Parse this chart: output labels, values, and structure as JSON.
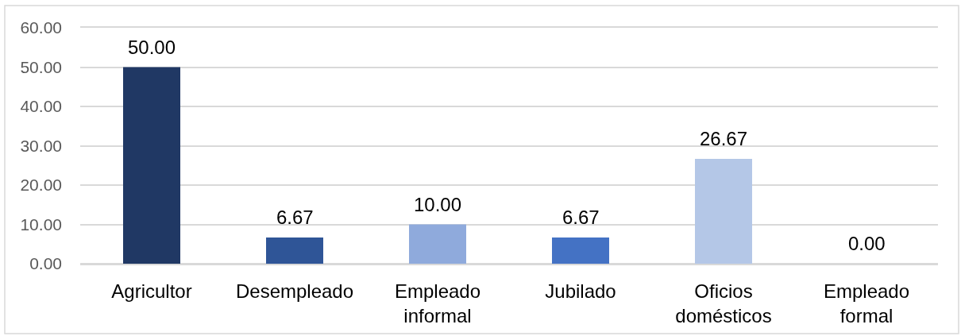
{
  "chart_data": {
    "type": "bar",
    "categories": [
      "Agricultor",
      "Desempleado",
      "Empleado informal",
      "Jubilado",
      "Oficios domésticos",
      "Empleado formal"
    ],
    "values": [
      50,
      6.67,
      10,
      6.67,
      26.67,
      0
    ],
    "colors": [
      "#203864",
      "#2f5597",
      "#8faadc",
      "#4472c4",
      "#b4c7e7",
      "#2f5597"
    ],
    "value_labels": [
      "50.00",
      "6.67",
      "10.00",
      "6.67",
      "26.67",
      "0.00"
    ],
    "ylim": [
      0,
      60
    ],
    "yticks": [
      {
        "value": 0,
        "label": "0.00"
      },
      {
        "value": 10,
        "label": "10.00"
      },
      {
        "value": 20,
        "label": "20.00"
      },
      {
        "value": 30,
        "label": "30.00"
      },
      {
        "value": 40,
        "label": "40.00"
      },
      {
        "value": 50,
        "label": "50.00"
      },
      {
        "value": 60,
        "label": "60.00"
      }
    ],
    "grid": "y"
  }
}
